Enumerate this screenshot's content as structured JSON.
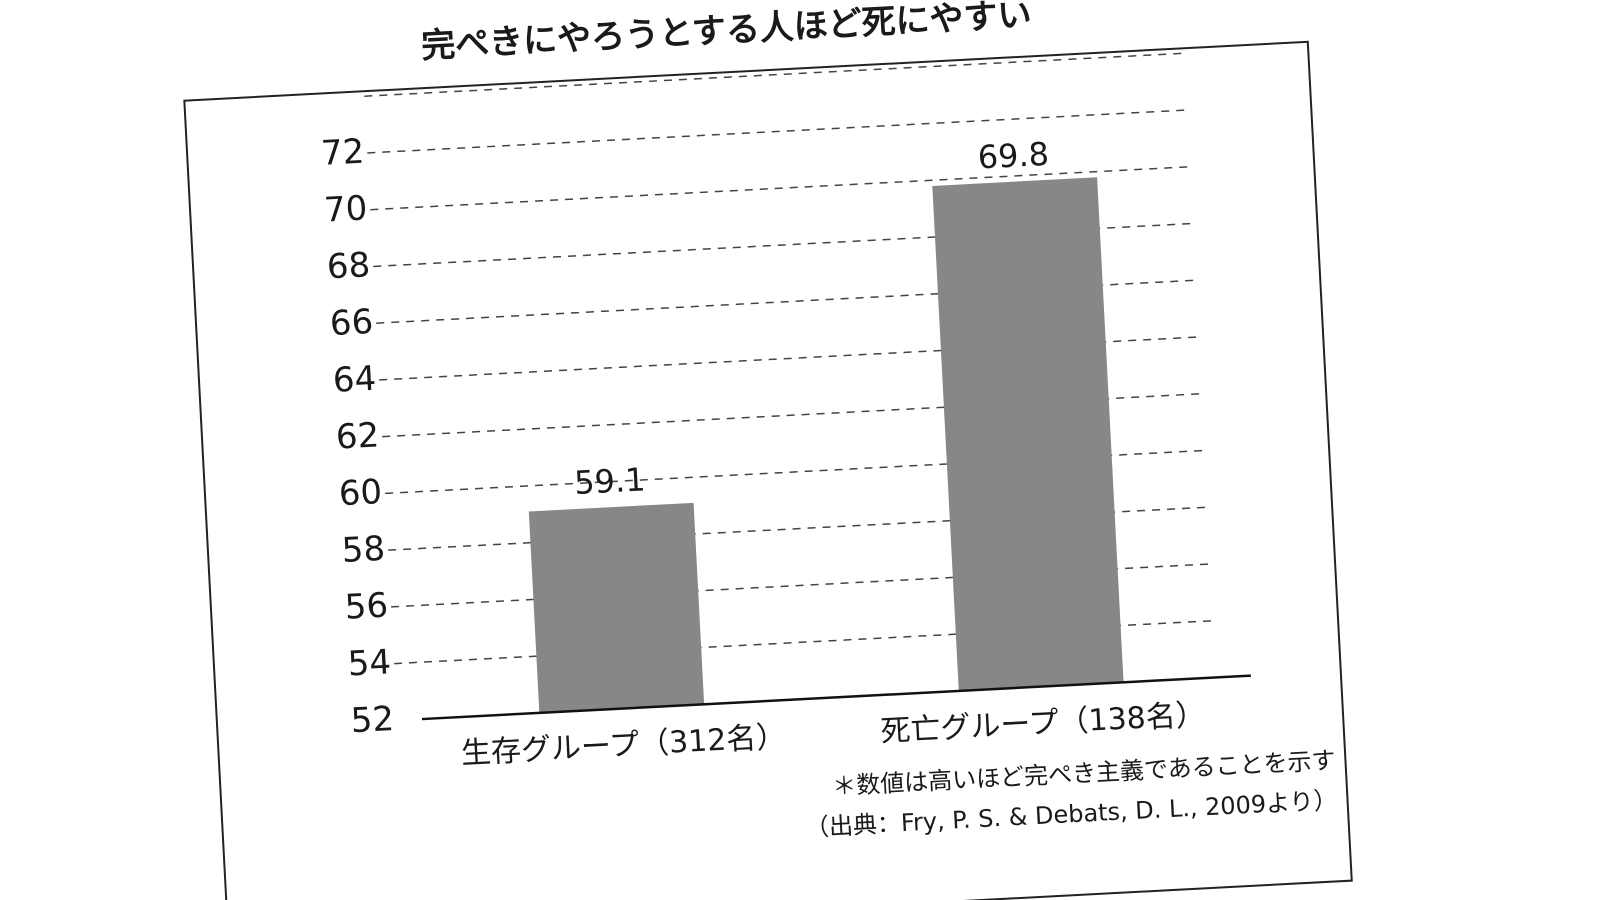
{
  "chart_data": {
    "type": "bar",
    "title": "完ぺきにやろうとする人ほど死にやすい",
    "categories": [
      "生存グループ（312名）",
      "死亡グループ（138名）"
    ],
    "values": [
      59.1,
      69.8
    ],
    "color": "#878787",
    "ylim": [
      52,
      74
    ],
    "yticks": [
      52,
      54,
      56,
      58,
      60,
      62,
      64,
      66,
      68,
      70,
      72
    ],
    "grid": true,
    "notes": [
      "＊数値は高いほど完ぺき主義であることを示す",
      "（出典：Fry, P. S. & Debats, D. L., 2009より）"
    ]
  }
}
